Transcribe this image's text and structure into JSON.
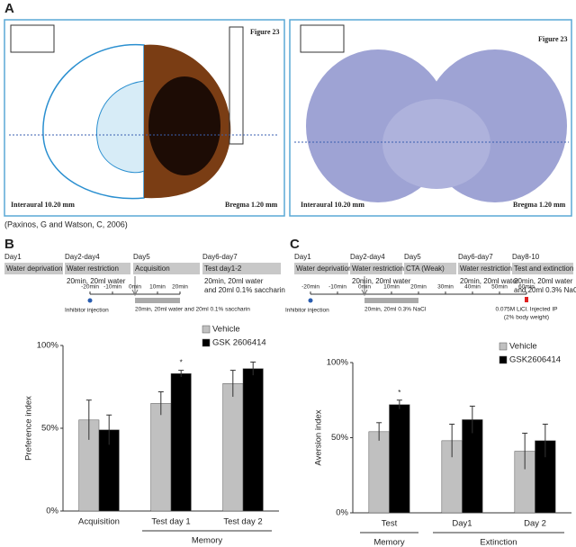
{
  "panel_labels": [
    "A",
    "B",
    "C"
  ],
  "panel_a": {
    "atlas_figure": "Figure 23",
    "atlas_interaural": "Interaural 10.20 mm",
    "atlas_bregma": "Bregma 1.20 mm",
    "nissl_figure": "Figure 23",
    "nissl_interaural": "Interaural 10.20 mm",
    "nissl_bregma": "Bregma 1.20 mm",
    "citation": "(Paxinos, G and Watson, C, 2006)"
  },
  "timeline_b": {
    "days": [
      {
        "label": "Day1",
        "box": "Water deprivation",
        "note": []
      },
      {
        "label": "Day2-day4",
        "box": "Water restriction",
        "note": [
          "20min, 20ml water"
        ]
      },
      {
        "label": "Day5",
        "box": "Acquisition",
        "note": []
      },
      {
        "label": "Day6-day7",
        "box": "Test day1-2",
        "note": [
          "20min, 20ml water",
          "and 20ml 0.1% saccharin"
        ]
      }
    ],
    "ticks": [
      "-20min",
      "-10min",
      "0min",
      "10min",
      "20min"
    ],
    "injection": "Inhibitor injection",
    "drink": [
      "20min, 20ml water and 20ml 0.1% saccharin"
    ],
    "licl": []
  },
  "timeline_c": {
    "days": [
      {
        "label": "Day1",
        "box": "Water deprivation",
        "note": []
      },
      {
        "label": "Day2-day4",
        "box": "Water restriction",
        "note": [
          "20min, 20ml water"
        ]
      },
      {
        "label": "Day5",
        "box": "CTA (Weak)",
        "note": []
      },
      {
        "label": "Day6-day7",
        "box": "Water restriction",
        "note": [
          "20min, 20ml water"
        ]
      },
      {
        "label": "Day8-10",
        "box": "Test and extinction",
        "note": [
          "20min, 20ml water",
          "and 20ml 0.3% NaCl"
        ]
      }
    ],
    "ticks": [
      "-20min",
      "-10min",
      "0min",
      "10min",
      "20min",
      "30min",
      "40min",
      "50min",
      "60min"
    ],
    "injection": "Inhibitor injection",
    "drink": [
      "20min, 20ml 0.3% NaCl"
    ],
    "licl": [
      "0.075M LiCl. Injected IP",
      "(2% body weight)"
    ]
  },
  "chart_data": [
    {
      "type": "bar",
      "y_label": "Preference index",
      "categories": [
        "Acquisition",
        "Test day 1",
        "Test day 2"
      ],
      "series": [
        {
          "name": "Vehicle",
          "color": "#c0c0c0",
          "values": [
            55,
            65,
            77
          ],
          "errors": [
            12,
            7,
            8
          ]
        },
        {
          "name": "GSK 2606414",
          "color": "#000000",
          "values": [
            49,
            83,
            86
          ],
          "errors": [
            9,
            2,
            4
          ]
        }
      ],
      "ylim": [
        0,
        100
      ],
      "yticks": [
        {
          "value": 0,
          "label": "0%"
        },
        {
          "value": 50,
          "label": "50%"
        },
        {
          "value": 100,
          "label": "100%"
        }
      ],
      "annotations": [
        {
          "text": "*",
          "series": 1,
          "category": 1
        }
      ],
      "groups": [
        {
          "label": "Memory",
          "from": 1,
          "to": 2
        }
      ]
    },
    {
      "type": "bar",
      "y_label": "Aversion index",
      "categories": [
        "Test",
        "Day1",
        "Day 2"
      ],
      "series": [
        {
          "name": "Vehicle",
          "color": "#c0c0c0",
          "values": [
            54,
            48,
            41
          ],
          "errors": [
            6,
            11,
            12
          ]
        },
        {
          "name": "GSK2606414",
          "color": "#000000",
          "values": [
            72,
            62,
            48
          ],
          "errors": [
            3,
            9,
            11
          ]
        }
      ],
      "ylim": [
        0,
        100
      ],
      "yticks": [
        {
          "value": 0,
          "label": "0%"
        },
        {
          "value": 50,
          "label": "50%"
        },
        {
          "value": 100,
          "label": "100%"
        }
      ],
      "annotations": [
        {
          "text": "*",
          "series": 1,
          "category": 0
        }
      ],
      "groups": [
        {
          "label": "Memory",
          "from": 0,
          "to": 0
        },
        {
          "label": "Extinction",
          "from": 1,
          "to": 2
        }
      ]
    }
  ]
}
